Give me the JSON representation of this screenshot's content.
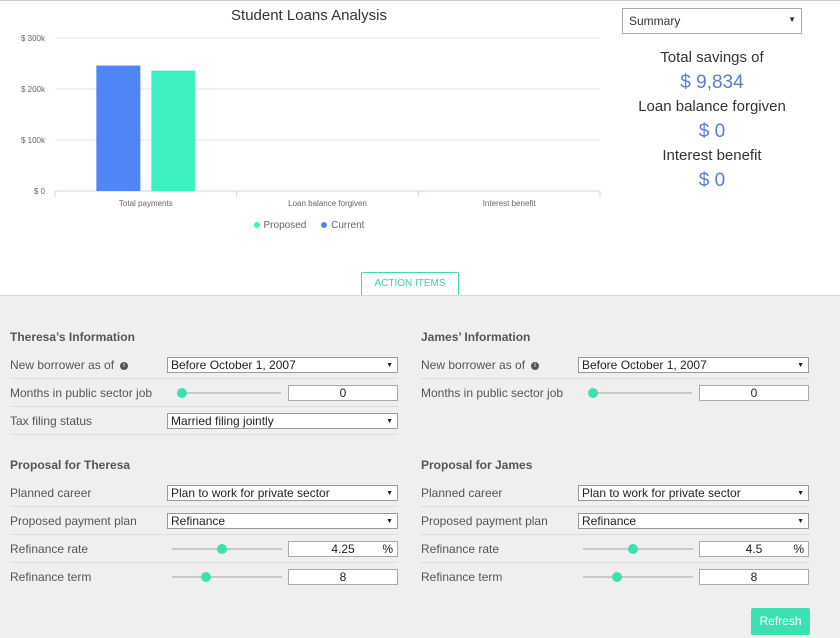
{
  "chart": {
    "title": "Student Loans Analysis"
  },
  "chart_data": {
    "type": "bar",
    "title": "Student Loans Analysis",
    "categories": [
      "Total payments",
      "Loan balance forgiven",
      "Interest benefit"
    ],
    "series": [
      {
        "name": "Current",
        "color": "#4f86f7",
        "values": [
          246000,
          0,
          0
        ]
      },
      {
        "name": "Proposed",
        "color": "#3df0c2",
        "values": [
          236000,
          0,
          0
        ]
      }
    ],
    "yticks": [
      "$ 0",
      "$ 100k",
      "$ 200k",
      "$ 300k"
    ],
    "ylim": [
      0,
      300000
    ],
    "legend": [
      "Proposed",
      "Current"
    ],
    "legend_position": "bottom",
    "grid": true
  },
  "summary": {
    "select_value": "Summary",
    "total_savings_label": "Total savings of",
    "total_savings_value": "$ 9,834",
    "loan_forgiven_label": "Loan balance forgiven",
    "loan_forgiven_value": "$ 0",
    "interest_label": "Interest benefit",
    "interest_value": "$ 0"
  },
  "action_items_label": "ACTION ITEMS",
  "theresa": {
    "info_title": "Theresa’s Information",
    "new_borrower_label": "New borrower as of",
    "new_borrower_value": "Before October 1, 2007",
    "months_label": "Months in public sector job",
    "months_value": "0",
    "months_fraction": 0,
    "tax_label": "Tax filing status",
    "tax_value": "Married filing jointly",
    "proposal_title": "Proposal for Theresa",
    "career_label": "Planned career",
    "career_value": "Plan to work for private sector",
    "plan_label": "Proposed payment plan",
    "plan_value": "Refinance",
    "rate_label": "Refinance rate",
    "rate_value": "4.25",
    "rate_fraction": 0.45,
    "term_label": "Refinance term",
    "term_value": "8",
    "term_fraction": 0.29
  },
  "james": {
    "info_title": "James’ Information",
    "new_borrower_label": "New borrower as of",
    "new_borrower_value": "Before October 1, 2007",
    "months_label": "Months in public sector job",
    "months_value": "0",
    "months_fraction": 0,
    "proposal_title": "Proposal for James",
    "career_label": "Planned career",
    "career_value": "Plan to work for private sector",
    "plan_label": "Proposed payment plan",
    "plan_value": "Refinance",
    "rate_label": "Refinance rate",
    "rate_value": "4.5",
    "rate_fraction": 0.45,
    "term_label": "Refinance term",
    "term_value": "8",
    "term_fraction": 0.29
  },
  "percent_symbol": "%",
  "info_icon_glyph": "i",
  "dropdown_arrow_glyph": "▼",
  "refresh_label": "Refresh"
}
